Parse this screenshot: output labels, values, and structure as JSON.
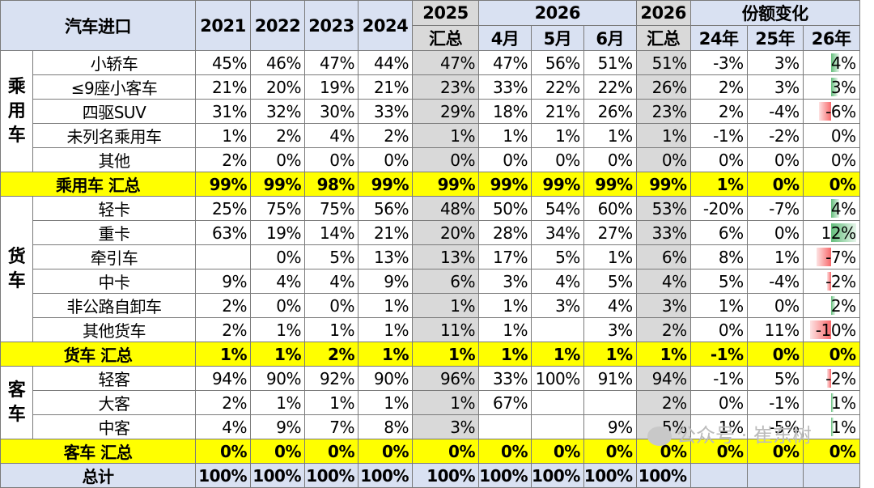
{
  "header": {
    "title": "汽车进口",
    "years": [
      "2021",
      "2022",
      "2023",
      "2024"
    ],
    "y2025": "2025",
    "y2025_sub": "汇总",
    "y2026": "2026",
    "months": [
      "4月",
      "5月",
      "6月"
    ],
    "y2026b": "2026",
    "y2026b_sub": "汇总",
    "share_change": "份额变化",
    "share_cols": [
      "24年",
      "25年",
      "26年"
    ]
  },
  "groups": [
    {
      "name": "乘\n用\n车",
      "rows": [
        {
          "label": "小轿车",
          "v": [
            "45%",
            "46%",
            "47%",
            "44%",
            "47%",
            "47%",
            "56%",
            "51%",
            "51%",
            "-3%",
            "3%",
            "4%"
          ],
          "bar": 0.04
        },
        {
          "label": "≤9座小客车",
          "v": [
            "21%",
            "20%",
            "19%",
            "21%",
            "23%",
            "33%",
            "22%",
            "22%",
            "26%",
            "2%",
            "3%",
            "3%"
          ],
          "bar": 0.03
        },
        {
          "label": "四驱SUV",
          "v": [
            "31%",
            "32%",
            "30%",
            "33%",
            "29%",
            "18%",
            "21%",
            "26%",
            "23%",
            "2%",
            "-4%",
            "-6%"
          ],
          "bar": -0.06
        },
        {
          "label": "未列名乘用车",
          "v": [
            "1%",
            "2%",
            "4%",
            "2%",
            "1%",
            "1%",
            "1%",
            "1%",
            "1%",
            "-1%",
            "-2%",
            "0%"
          ],
          "bar": 0
        },
        {
          "label": "其他",
          "v": [
            "2%",
            "0%",
            "0%",
            "0%",
            "0%",
            "0%",
            "0%",
            "0%",
            "0%",
            "0%",
            "0%",
            "0%"
          ],
          "bar": 0
        }
      ],
      "subtotal": {
        "label": "乘用车 汇总",
        "v": [
          "99%",
          "99%",
          "98%",
          "99%",
          "99%",
          "99%",
          "99%",
          "99%",
          "99%",
          "1%",
          "0%",
          "0%"
        ],
        "bar": 0
      }
    },
    {
      "name": "货\n车",
      "rows": [
        {
          "label": "轻卡",
          "v": [
            "25%",
            "75%",
            "75%",
            "56%",
            "48%",
            "50%",
            "54%",
            "60%",
            "53%",
            "-20%",
            "-7%",
            "4%"
          ],
          "bar": 0.04
        },
        {
          "label": "重卡",
          "v": [
            "63%",
            "19%",
            "14%",
            "21%",
            "20%",
            "28%",
            "34%",
            "27%",
            "33%",
            "6%",
            "0%",
            "12%"
          ],
          "bar": 0.12
        },
        {
          "label": "牵引车",
          "v": [
            "",
            "0%",
            "5%",
            "13%",
            "13%",
            "17%",
            "5%",
            "1%",
            "6%",
            "8%",
            "1%",
            "-7%"
          ],
          "bar": -0.07
        },
        {
          "label": "中卡",
          "v": [
            "9%",
            "4%",
            "4%",
            "9%",
            "6%",
            "3%",
            "4%",
            "5%",
            "4%",
            "5%",
            "-4%",
            "-2%"
          ],
          "bar": -0.02
        },
        {
          "label": "非公路自卸车",
          "v": [
            "2%",
            "0%",
            "0%",
            "1%",
            "1%",
            "1%",
            "3%",
            "4%",
            "3%",
            "1%",
            "0%",
            "2%"
          ],
          "bar": 0.02
        },
        {
          "label": "其他货车",
          "v": [
            "2%",
            "1%",
            "1%",
            "1%",
            "11%",
            "1%",
            "",
            "3%",
            "2%",
            "0%",
            "11%",
            "-10%"
          ],
          "bar": -0.1
        }
      ],
      "subtotal": {
        "label": "货车 汇总",
        "v": [
          "1%",
          "1%",
          "2%",
          "1%",
          "1%",
          "1%",
          "1%",
          "1%",
          "1%",
          "-1%",
          "0%",
          "0%"
        ],
        "bar": 0
      }
    },
    {
      "name": "客\n车",
      "rows": [
        {
          "label": "轻客",
          "v": [
            "94%",
            "90%",
            "92%",
            "90%",
            "96%",
            "33%",
            "100%",
            "91%",
            "94%",
            "-1%",
            "5%",
            "-2%"
          ],
          "bar": -0.02
        },
        {
          "label": "大客",
          "v": [
            "2%",
            "1%",
            "1%",
            "1%",
            "1%",
            "67%",
            "",
            "",
            "2%",
            "0%",
            "-1%",
            "1%"
          ],
          "bar": 0.01
        },
        {
          "label": "中客",
          "v": [
            "4%",
            "9%",
            "7%",
            "8%",
            "3%",
            "",
            "",
            "9%",
            "5%",
            "1%",
            "-5%",
            "1%"
          ],
          "bar": 0.01
        }
      ],
      "subtotal": {
        "label": "客车 汇总",
        "v": [
          "0%",
          "0%",
          "0%",
          "0%",
          "0%",
          "0%",
          "0%",
          "0%",
          "0%",
          "0%",
          "0%",
          "0%"
        ],
        "bar": 0
      }
    }
  ],
  "total": {
    "label": "总计",
    "v": [
      "100%",
      "100%",
      "100%",
      "100%",
      "100%",
      "100%",
      "100%",
      "100%",
      "100%",
      "",
      "",
      ""
    ]
  },
  "watermark": "公众号 · 崔东树",
  "colors": {
    "header_bg": "#d9e1f2",
    "subtotal_bg": "#ffff00",
    "gray_col": "#d9d9d9",
    "pos_bar": "#63be7b",
    "neg_bar": "#f8696b"
  }
}
